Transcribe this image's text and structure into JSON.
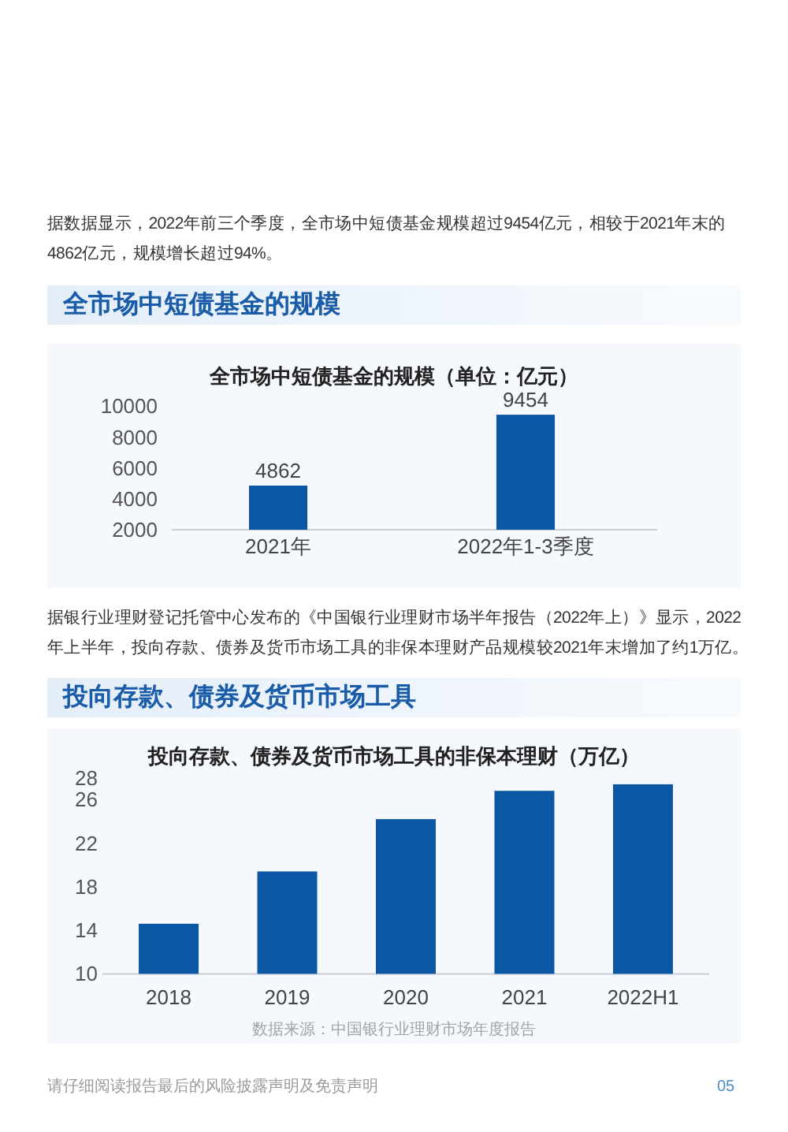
{
  "chart_data": [
    {
      "type": "bar",
      "title": "全市场中短债基金的规模（单位：亿元）",
      "categories": [
        "2021年",
        "2022年1-3季度"
      ],
      "values": [
        4862,
        9454
      ],
      "color": "#0b57a4",
      "ylim": [
        2000,
        10000
      ],
      "yticks": [
        2000,
        4000,
        6000,
        8000,
        10000
      ],
      "data_labels": true,
      "annotations": [
        "据数据显示，2022年前三个季度，全市场中短债基金规模超过9454亿元，相较于2021年末的4862亿元，规模增长超过94%。",
        "全市场中短债基金的规模"
      ]
    },
    {
      "type": "bar",
      "title": "投向存款、债券及货币市场工具的非保本理财（万亿）",
      "categories": [
        "2018",
        "2019",
        "2020",
        "2021",
        "2022H1"
      ],
      "values": [
        14.6,
        19.4,
        24.2,
        26.8,
        27.4
      ],
      "color": "#0b57a4",
      "ylim": [
        10,
        28
      ],
      "yticks": [
        10,
        14,
        18,
        22,
        26,
        28
      ],
      "annotations": [
        "据银行业理财登记托管中心发布的《中国银行业理财市场半年报告（2022年上）》显示，2022年上半年，投向存款、债券及货币市场工具的非保本理财产品规模较2021年末增加了约1万亿。",
        "投向存款、债券及货币市场工具",
        "数据来源：中国银行业理财市场年度报告",
        "请仔细阅读报告最后的风险披露声明及免责声明",
        "05"
      ]
    }
  ]
}
